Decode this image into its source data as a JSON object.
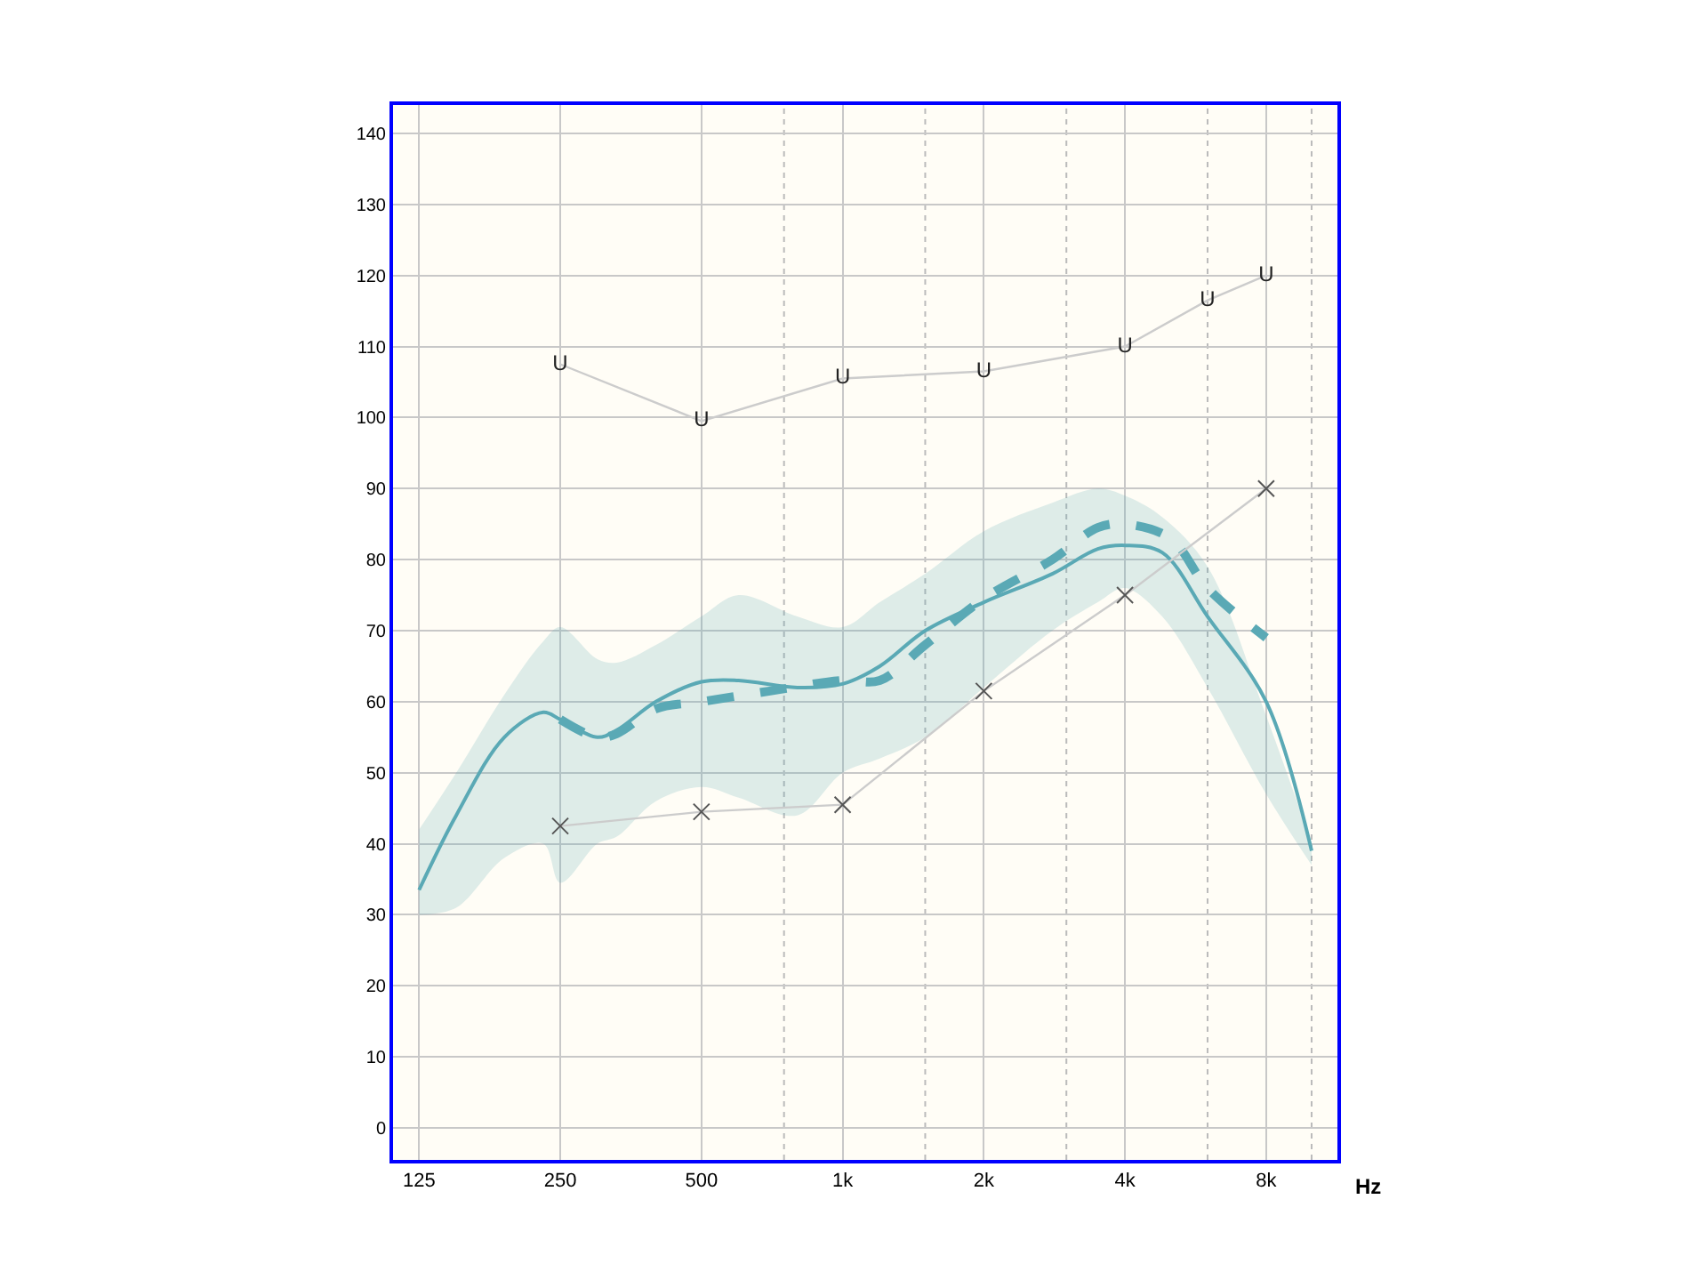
{
  "chart_data": {
    "type": "line",
    "xlabel": "Hz",
    "log": "x",
    "grid": true,
    "xlim": [
      110,
      11350
    ],
    "ylim": [
      -4.5,
      144
    ],
    "xticks": [
      {
        "value": 125,
        "label": "125"
      },
      {
        "value": 250,
        "label": "250"
      },
      {
        "value": 500,
        "label": "500"
      },
      {
        "value": 750,
        "label": null
      },
      {
        "value": 1000,
        "label": "1k"
      },
      {
        "value": 1500,
        "label": null
      },
      {
        "value": 2000,
        "label": "2k"
      },
      {
        "value": 3000,
        "label": null
      },
      {
        "value": 4000,
        "label": "4k"
      },
      {
        "value": 6000,
        "label": null
      },
      {
        "value": 8000,
        "label": "8k"
      },
      {
        "value": 10000,
        "label": null
      }
    ],
    "yticks": [
      0,
      10,
      20,
      30,
      40,
      50,
      60,
      70,
      80,
      90,
      100,
      110,
      120,
      130,
      140
    ],
    "series": [
      {
        "color": "#5aa9b5",
        "line_style": "solid",
        "marker": "none",
        "x": [
          125,
          150,
          190,
          230,
          250,
          300,
          330,
          400,
          500,
          600,
          800,
          1000,
          1200,
          1500,
          2000,
          2800,
          3500,
          4000,
          4800,
          6000,
          8000,
          10000
        ],
        "values": [
          33.5,
          44,
          55,
          58.5,
          57.5,
          55,
          56,
          60,
          62.8,
          63,
          62,
          62.5,
          65,
          70,
          74,
          78,
          81.5,
          82,
          81,
          72,
          60,
          39
        ],
        "lower": [
          30,
          31,
          38,
          40,
          34.5,
          40,
          41,
          46,
          48,
          46.5,
          44,
          50,
          52,
          55,
          62,
          70,
          74,
          76,
          72,
          62,
          47,
          37
        ],
        "upper": [
          42,
          50,
          61,
          68.5,
          70.5,
          66,
          65.5,
          68,
          72,
          75,
          72,
          70.5,
          74,
          78,
          84,
          88,
          90,
          89,
          86,
          79,
          58,
          40
        ]
      },
      {
        "color": "#5aa9b5",
        "line_style": "dashed",
        "marker": "none",
        "x": [
          250,
          300,
          330,
          400,
          500,
          700,
          1000,
          1200,
          1500,
          2000,
          2800,
          3500,
          4000,
          5000,
          6000,
          8000
        ],
        "values": [
          57.5,
          55,
          55.5,
          59,
          60,
          61.5,
          63,
          63,
          68,
          74.5,
          80,
          84.5,
          85,
          83,
          76,
          69
        ]
      },
      {
        "color": "#cccccc",
        "line_style": "solid",
        "marker": "none",
        "x": [
          250,
          500,
          1000,
          2000,
          4000,
          6000,
          8000
        ],
        "values": [
          107.5,
          99.5,
          105.5,
          106.5,
          110,
          116.5,
          120
        ],
        "value_labels": [
          "U",
          "U",
          "U",
          "U",
          "U",
          "U",
          "U"
        ]
      },
      {
        "color": "#cccccc",
        "line_style": "solid",
        "marker": "cross",
        "x": [
          250,
          500,
          1000,
          2000,
          4000,
          8000
        ],
        "values": [
          42.5,
          44.5,
          45.5,
          61.5,
          75,
          90
        ]
      }
    ]
  }
}
